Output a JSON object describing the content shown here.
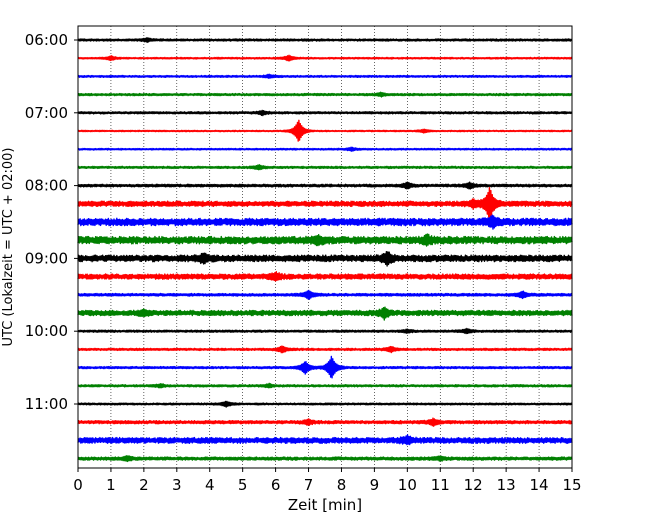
{
  "chart_data": {
    "type": "line",
    "title": "",
    "xlabel": "Zeit  [min]",
    "ylabel": "UTC (Lokalzeit = UTC + 02:00)",
    "xlim": [
      0,
      15
    ],
    "xticks": [
      0,
      1,
      2,
      3,
      4,
      5,
      6,
      7,
      8,
      9,
      10,
      11,
      12,
      13,
      14,
      15
    ],
    "y_start": "06:00",
    "y_end": "11:45",
    "trace_interval_min": 15,
    "yticks": [
      "06:00",
      "07:00",
      "08:00",
      "09:00",
      "10:00",
      "11:00"
    ],
    "x_grid": "dotted vertical at each minute",
    "trace_colors": [
      "#000000",
      "#ff0000",
      "#0000ff",
      "#008000"
    ],
    "series": [
      {
        "start": "06:00",
        "color": "#000000",
        "base_amp": 0.8,
        "events": [
          {
            "x": 2.1,
            "amp": 1.5
          }
        ]
      },
      {
        "start": "06:15",
        "color": "#ff0000",
        "base_amp": 0.6,
        "events": [
          {
            "x": 1.0,
            "amp": 2.0
          },
          {
            "x": 6.4,
            "amp": 2.5
          }
        ]
      },
      {
        "start": "06:30",
        "color": "#0000ff",
        "base_amp": 0.7,
        "events": [
          {
            "x": 5.8,
            "amp": 1.5
          }
        ]
      },
      {
        "start": "06:45",
        "color": "#008000",
        "base_amp": 0.8,
        "events": [
          {
            "x": 9.2,
            "amp": 1.5
          }
        ]
      },
      {
        "start": "07:00",
        "color": "#000000",
        "base_amp": 0.8,
        "events": [
          {
            "x": 5.6,
            "amp": 2.0
          }
        ]
      },
      {
        "start": "07:15",
        "color": "#ff0000",
        "base_amp": 0.5,
        "events": [
          {
            "x": 6.7,
            "amp": 11.0
          },
          {
            "x": 10.5,
            "amp": 1.5
          }
        ]
      },
      {
        "start": "07:30",
        "color": "#0000ff",
        "base_amp": 0.6,
        "events": [
          {
            "x": 8.3,
            "amp": 1.5
          }
        ]
      },
      {
        "start": "07:45",
        "color": "#008000",
        "base_amp": 0.8,
        "events": [
          {
            "x": 5.5,
            "amp": 2.0
          }
        ]
      },
      {
        "start": "08:00",
        "color": "#000000",
        "base_amp": 1.0,
        "events": [
          {
            "x": 10.0,
            "amp": 2.8
          },
          {
            "x": 11.9,
            "amp": 2.5
          }
        ]
      },
      {
        "start": "08:15",
        "color": "#ff0000",
        "base_amp": 2.0,
        "events": [
          {
            "x": 12.5,
            "amp": 15.0
          },
          {
            "x": 12.0,
            "amp": 3.0
          }
        ]
      },
      {
        "start": "08:30",
        "color": "#0000ff",
        "base_amp": 2.8,
        "events": [
          {
            "x": 12.6,
            "amp": 4.0
          }
        ]
      },
      {
        "start": "08:45",
        "color": "#008000",
        "base_amp": 2.8,
        "events": [
          {
            "x": 10.6,
            "amp": 3.5
          },
          {
            "x": 7.3,
            "amp": 3.0
          }
        ]
      },
      {
        "start": "09:00",
        "color": "#000000",
        "base_amp": 2.5,
        "events": [
          {
            "x": 9.4,
            "amp": 5.0
          },
          {
            "x": 3.8,
            "amp": 3.5
          }
        ]
      },
      {
        "start": "09:15",
        "color": "#ff0000",
        "base_amp": 2.0,
        "events": [
          {
            "x": 6.0,
            "amp": 3.0
          }
        ]
      },
      {
        "start": "09:30",
        "color": "#0000ff",
        "base_amp": 1.0,
        "events": [
          {
            "x": 7.0,
            "amp": 4.0
          },
          {
            "x": 13.5,
            "amp": 3.0
          }
        ]
      },
      {
        "start": "09:45",
        "color": "#008000",
        "base_amp": 2.0,
        "events": [
          {
            "x": 9.3,
            "amp": 4.5
          },
          {
            "x": 2.0,
            "amp": 2.5
          }
        ]
      },
      {
        "start": "10:00",
        "color": "#000000",
        "base_amp": 0.8,
        "events": [
          {
            "x": 11.8,
            "amp": 2.0
          },
          {
            "x": 10.0,
            "amp": 1.5
          }
        ]
      },
      {
        "start": "10:15",
        "color": "#ff0000",
        "base_amp": 0.8,
        "events": [
          {
            "x": 6.2,
            "amp": 3.0
          },
          {
            "x": 9.5,
            "amp": 2.5
          }
        ]
      },
      {
        "start": "10:30",
        "color": "#0000ff",
        "base_amp": 0.8,
        "events": [
          {
            "x": 6.9,
            "amp": 6.0
          },
          {
            "x": 7.7,
            "amp": 11.0
          }
        ]
      },
      {
        "start": "10:45",
        "color": "#008000",
        "base_amp": 0.8,
        "events": [
          {
            "x": 2.5,
            "amp": 1.5
          },
          {
            "x": 5.8,
            "amp": 1.5
          }
        ]
      },
      {
        "start": "11:00",
        "color": "#000000",
        "base_amp": 0.7,
        "events": [
          {
            "x": 4.5,
            "amp": 2.5
          }
        ]
      },
      {
        "start": "11:15",
        "color": "#ff0000",
        "base_amp": 1.2,
        "events": [
          {
            "x": 10.8,
            "amp": 3.0
          },
          {
            "x": 7.0,
            "amp": 2.0
          }
        ]
      },
      {
        "start": "11:30",
        "color": "#0000ff",
        "base_amp": 2.2,
        "events": [
          {
            "x": 10.0,
            "amp": 3.0
          }
        ]
      },
      {
        "start": "11:45",
        "color": "#008000",
        "base_amp": 1.2,
        "events": [
          {
            "x": 1.5,
            "amp": 2.0
          },
          {
            "x": 11.0,
            "amp": 1.5
          }
        ]
      }
    ]
  }
}
